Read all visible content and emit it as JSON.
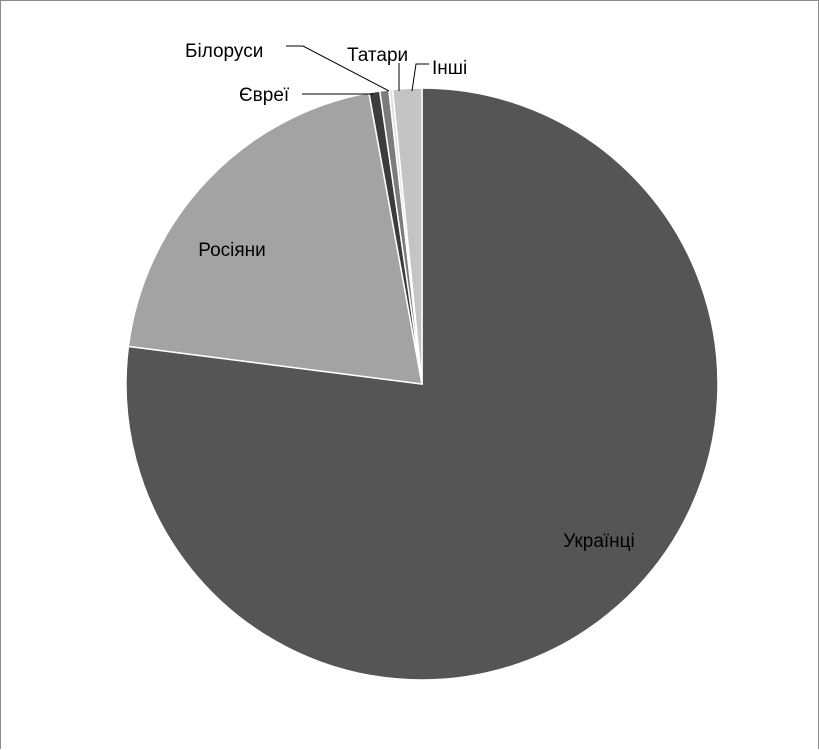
{
  "chart_data": {
    "type": "pie",
    "title": "",
    "start_angle_deg": 0,
    "direction": "clockwise",
    "series": [
      {
        "values": [
          77.8,
          20.3,
          0.6,
          0.5,
          0.2,
          1.6
        ],
        "categories": [
          "Українці",
          "Росіяни",
          "Євреї",
          "Білоруси",
          "Татари",
          "Інші"
        ],
        "colors": [
          "#555555",
          "#a3a3a3",
          "#3c3c3c",
          "#7c7c7c",
          "#e0e0e0",
          "#c4c4c4"
        ]
      }
    ],
    "legend": "none",
    "data_labels": "category name"
  }
}
